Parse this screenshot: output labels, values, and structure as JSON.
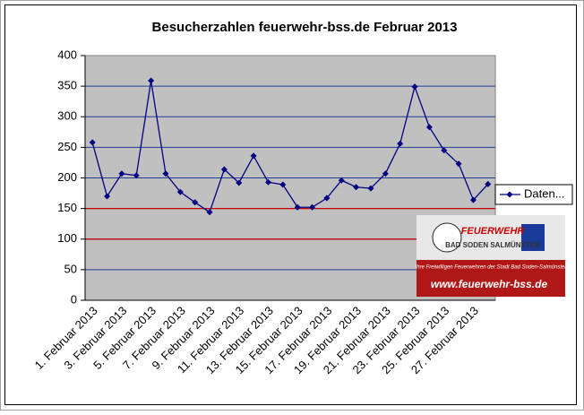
{
  "chart_data": {
    "type": "line",
    "title": "Besucherzahlen feuerwehr-bss.de Februar 2013",
    "categories": [
      "1. Februar 2013",
      null,
      "3. Februar 2013",
      null,
      "5. Februar 2013",
      null,
      "7. Februar 2013",
      null,
      "9. Februar 2013",
      null,
      "11. Februar 2013",
      null,
      "13. Februar 2013",
      null,
      "15. Februar 2013",
      null,
      "17. Februar 2013",
      null,
      "19. Februar 2013",
      null,
      "21. Februar 2013",
      null,
      "23. Februar 2013",
      null,
      "25. Februar 2013",
      null,
      "27. Februar 2013",
      null
    ],
    "series": [
      {
        "name": "Daten...",
        "color": "#000080",
        "values": [
          258,
          170,
          207,
          204,
          359,
          207,
          177,
          160,
          144,
          214,
          192,
          236,
          193,
          189,
          152,
          152,
          167,
          196,
          185,
          183,
          207,
          256,
          349,
          283,
          245,
          223,
          164,
          190
        ]
      }
    ],
    "ylim": [
      0,
      400
    ],
    "yticks": [
      0,
      50,
      100,
      150,
      200,
      250,
      300,
      350,
      400
    ],
    "grid": true,
    "grid_color": "#1f3f8f",
    "reference_lines": [
      100,
      150
    ],
    "reference_color": "#cc0000",
    "legend": "right"
  },
  "logo": {
    "brand": "FEUERWEHR",
    "town": "BAD SODEN SALMÜNSTER",
    "tagline": "Ihre Freiwilligen Feuerwehren der Stadt Bad Soden-Salmünster",
    "url": "www.feuerwehr-bss.de"
  }
}
